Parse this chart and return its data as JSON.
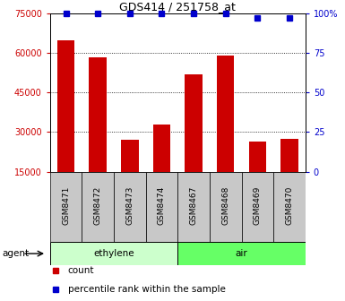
{
  "title": "GDS414 / 251758_at",
  "samples": [
    "GSM8471",
    "GSM8472",
    "GSM8473",
    "GSM8474",
    "GSM8467",
    "GSM8468",
    "GSM8469",
    "GSM8470"
  ],
  "counts": [
    65000,
    58500,
    27000,
    33000,
    52000,
    59000,
    26500,
    27500
  ],
  "percentile_ranks": [
    100,
    100,
    100,
    100,
    100,
    100,
    97,
    97
  ],
  "groups": [
    {
      "label": "ethylene",
      "indices": [
        0,
        1,
        2,
        3
      ],
      "color": "#ccffcc"
    },
    {
      "label": "air",
      "indices": [
        4,
        5,
        6,
        7
      ],
      "color": "#66ff66"
    }
  ],
  "group_label": "agent",
  "bar_color": "#cc0000",
  "dot_color": "#0000cc",
  "y_left_ticks": [
    15000,
    30000,
    45000,
    60000,
    75000
  ],
  "y_right_ticks": [
    0,
    25,
    50,
    75,
    100
  ],
  "ylim_left": [
    15000,
    75000
  ],
  "ylim_right": [
    0,
    100
  ],
  "legend_count_label": "count",
  "legend_percentile_label": "percentile rank within the sample",
  "bar_bottom": 15000
}
